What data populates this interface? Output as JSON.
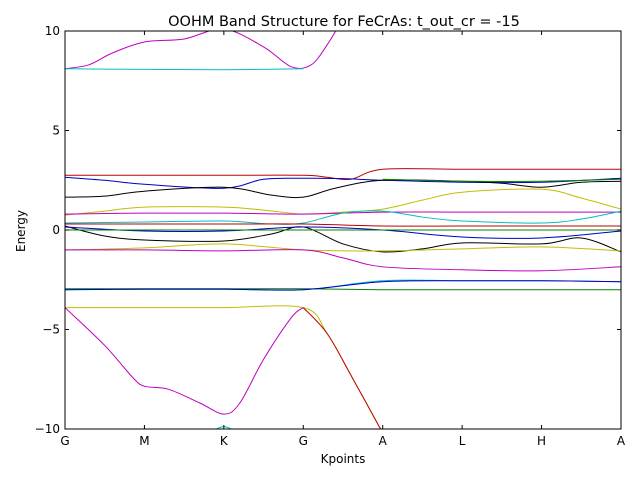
{
  "chart_data": {
    "type": "line",
    "title": "OOHM Band Structure for FeCrAs: t_out_cr = -15",
    "xlabel": "Kpoints",
    "ylabel": "Energy",
    "categories": [
      "G",
      "M",
      "K",
      "G",
      "A",
      "L",
      "H",
      "A"
    ],
    "ylim": [
      -10,
      10
    ],
    "yticks": [
      "−10",
      "−5",
      "0",
      "5",
      "10"
    ],
    "ytick_values": [
      -10,
      -5,
      0,
      5,
      10
    ],
    "grid": false,
    "legend": "none",
    "series": [
      {
        "color": "#bf00bf",
        "points": [
          [
            0,
            8.1
          ],
          [
            0.3,
            8.3
          ],
          [
            0.6,
            8.9
          ],
          [
            1,
            9.45
          ],
          [
            1.5,
            9.6
          ],
          [
            2,
            10.1
          ],
          [
            2.5,
            9.2
          ],
          [
            2.85,
            8.2
          ],
          [
            3.1,
            8.3
          ],
          [
            3.3,
            9.3
          ],
          [
            3.45,
            10.3
          ]
        ]
      },
      {
        "color": "#00bfbf",
        "points": [
          [
            0,
            8.1
          ],
          [
            1,
            8.07
          ],
          [
            2,
            8.05
          ],
          [
            3,
            8.1
          ]
        ]
      },
      {
        "color": "#bf0000",
        "points": [
          [
            0,
            2.75
          ],
          [
            1,
            2.75
          ],
          [
            2,
            2.75
          ],
          [
            3,
            2.75
          ],
          [
            3.3,
            2.65
          ],
          [
            3.6,
            2.55
          ],
          [
            4,
            3.05
          ],
          [
            5,
            3.05
          ],
          [
            6,
            3.05
          ],
          [
            7,
            3.05
          ]
        ]
      },
      {
        "color": "#0000bf",
        "points": [
          [
            0,
            2.65
          ],
          [
            0.5,
            2.5
          ],
          [
            1,
            2.3
          ],
          [
            2,
            2.1
          ],
          [
            2.5,
            2.55
          ],
          [
            3,
            2.6
          ],
          [
            3.5,
            2.58
          ],
          [
            4,
            2.5
          ],
          [
            5,
            2.4
          ],
          [
            6,
            2.4
          ],
          [
            7,
            2.6
          ]
        ]
      },
      {
        "color": "#000000",
        "points": [
          [
            0,
            1.65
          ],
          [
            0.5,
            1.7
          ],
          [
            1,
            1.95
          ],
          [
            2,
            2.15
          ],
          [
            2.6,
            1.75
          ],
          [
            3,
            1.65
          ],
          [
            3.4,
            2.1
          ],
          [
            4,
            2.5
          ],
          [
            5,
            2.45
          ],
          [
            5.5,
            2.35
          ],
          [
            6,
            2.15
          ],
          [
            6.5,
            2.4
          ],
          [
            7,
            2.45
          ]
        ]
      },
      {
        "color": "#008000",
        "points": [
          [
            4,
            2.55
          ],
          [
            5,
            2.45
          ],
          [
            6,
            2.45
          ],
          [
            7,
            2.55
          ]
        ]
      },
      {
        "color": "#bfbf00",
        "points": [
          [
            0,
            0.75
          ],
          [
            0.5,
            0.95
          ],
          [
            1,
            1.15
          ],
          [
            2,
            1.15
          ],
          [
            2.5,
            1.0
          ],
          [
            3,
            0.8
          ],
          [
            3.5,
            0.9
          ],
          [
            4,
            1.05
          ],
          [
            4.5,
            1.5
          ],
          [
            5,
            1.9
          ],
          [
            6,
            2.05
          ],
          [
            6.5,
            1.6
          ],
          [
            7,
            1.05
          ]
        ]
      },
      {
        "color": "#bf00bf",
        "points": [
          [
            0,
            0.8
          ],
          [
            1,
            0.85
          ],
          [
            2,
            0.85
          ],
          [
            3,
            0.8
          ],
          [
            4,
            0.9
          ],
          [
            5,
            0.9
          ],
          [
            6,
            0.9
          ],
          [
            7,
            0.9
          ]
        ]
      },
      {
        "color": "#00bfbf",
        "points": [
          [
            0,
            0.35
          ],
          [
            1,
            0.4
          ],
          [
            2,
            0.45
          ],
          [
            2.6,
            0.3
          ],
          [
            3,
            0.35
          ],
          [
            3.5,
            0.85
          ],
          [
            4,
            0.95
          ],
          [
            4.5,
            0.65
          ],
          [
            5,
            0.45
          ],
          [
            6,
            0.35
          ],
          [
            6.5,
            0.55
          ],
          [
            7,
            0.95
          ]
        ]
      },
      {
        "color": "#bf0000",
        "points": [
          [
            0,
            0.3
          ],
          [
            1,
            0.3
          ],
          [
            2,
            0.3
          ],
          [
            3,
            0.3
          ],
          [
            4,
            0.2
          ],
          [
            5,
            0.2
          ],
          [
            6,
            0.2
          ],
          [
            7,
            0.2
          ]
        ]
      },
      {
        "color": "#000000",
        "points": [
          [
            0,
            0.2
          ],
          [
            0.5,
            -0.3
          ],
          [
            1,
            -0.5
          ],
          [
            2,
            -0.55
          ],
          [
            2.6,
            -0.2
          ],
          [
            3,
            0.15
          ],
          [
            3.5,
            -0.7
          ],
          [
            4,
            -1.1
          ],
          [
            4.5,
            -0.95
          ],
          [
            5,
            -0.65
          ],
          [
            6,
            -0.7
          ],
          [
            6.5,
            -0.4
          ],
          [
            7,
            -1.1
          ]
        ]
      },
      {
        "color": "#0000bf",
        "points": [
          [
            0,
            0.15
          ],
          [
            1,
            -0.05
          ],
          [
            2,
            -0.05
          ],
          [
            3,
            0.15
          ],
          [
            4,
            0.0
          ],
          [
            5,
            -0.35
          ],
          [
            6,
            -0.4
          ],
          [
            7,
            -0.05
          ]
        ]
      },
      {
        "color": "#008000",
        "points": [
          [
            0,
            0.0
          ],
          [
            1,
            0.0
          ],
          [
            2,
            0.0
          ],
          [
            3,
            0.0
          ],
          [
            4,
            0.0
          ],
          [
            5,
            0.0
          ],
          [
            6,
            0.0
          ],
          [
            7,
            0.0
          ]
        ]
      },
      {
        "color": "#bfbf00",
        "points": [
          [
            0,
            -1.0
          ],
          [
            1,
            -0.9
          ],
          [
            2,
            -0.7
          ],
          [
            3,
            -1.0
          ],
          [
            4,
            -1.05
          ],
          [
            5,
            -0.95
          ],
          [
            6,
            -0.85
          ],
          [
            7,
            -1.05
          ]
        ]
      },
      {
        "color": "#bf00bf",
        "points": [
          [
            0,
            -1.0
          ],
          [
            1,
            -1.0
          ],
          [
            2,
            -1.05
          ],
          [
            3,
            -1.0
          ],
          [
            3.5,
            -1.4
          ],
          [
            4,
            -1.85
          ],
          [
            5,
            -2.0
          ],
          [
            6,
            -2.05
          ],
          [
            7,
            -1.85
          ]
        ]
      },
      {
        "color": "#00bfbf",
        "points": [
          [
            0,
            -3.0
          ],
          [
            1,
            -2.95
          ],
          [
            2,
            -2.95
          ],
          [
            3,
            -3.0
          ],
          [
            4,
            -2.55
          ],
          [
            5,
            -2.55
          ],
          [
            6,
            -2.55
          ],
          [
            7,
            -2.6
          ]
        ]
      },
      {
        "color": "#008000",
        "points": [
          [
            0,
            -2.95
          ],
          [
            1,
            -2.95
          ],
          [
            2,
            -2.95
          ],
          [
            3,
            -2.95
          ],
          [
            4,
            -3.0
          ],
          [
            5,
            -3.0
          ],
          [
            6,
            -3.0
          ],
          [
            7,
            -3.0
          ]
        ]
      },
      {
        "color": "#0000bf",
        "points": [
          [
            0,
            -3.0
          ],
          [
            1,
            -2.98
          ],
          [
            2,
            -2.98
          ],
          [
            3,
            -3.0
          ],
          [
            4,
            -2.6
          ],
          [
            5,
            -2.55
          ],
          [
            6,
            -2.55
          ],
          [
            7,
            -2.6
          ]
        ]
      },
      {
        "color": "#bfbf00",
        "points": [
          [
            0,
            -3.9
          ],
          [
            1,
            -3.9
          ],
          [
            2,
            -3.9
          ],
          [
            3,
            -3.9
          ],
          [
            3.3,
            -5.2
          ],
          [
            3.6,
            -7.3
          ],
          [
            4,
            -10.2
          ]
        ]
      },
      {
        "color": "#bf00bf",
        "points": [
          [
            0,
            -3.9
          ],
          [
            0.5,
            -5.8
          ],
          [
            0.85,
            -7.4
          ],
          [
            1,
            -7.85
          ],
          [
            1.3,
            -8.0
          ],
          [
            1.7,
            -8.7
          ],
          [
            2,
            -9.25
          ],
          [
            2.2,
            -8.7
          ],
          [
            2.5,
            -6.5
          ],
          [
            2.85,
            -4.4
          ],
          [
            3,
            -3.9
          ]
        ]
      },
      {
        "color": "#bf0000",
        "points": [
          [
            3,
            -3.9
          ],
          [
            3.3,
            -5.2
          ],
          [
            3.6,
            -7.3
          ],
          [
            4,
            -10.2
          ]
        ]
      },
      {
        "color": "#00bfbf",
        "points": [
          [
            1.85,
            -10.1
          ],
          [
            2.0,
            -9.88
          ],
          [
            2.15,
            -10.1
          ]
        ]
      }
    ]
  }
}
